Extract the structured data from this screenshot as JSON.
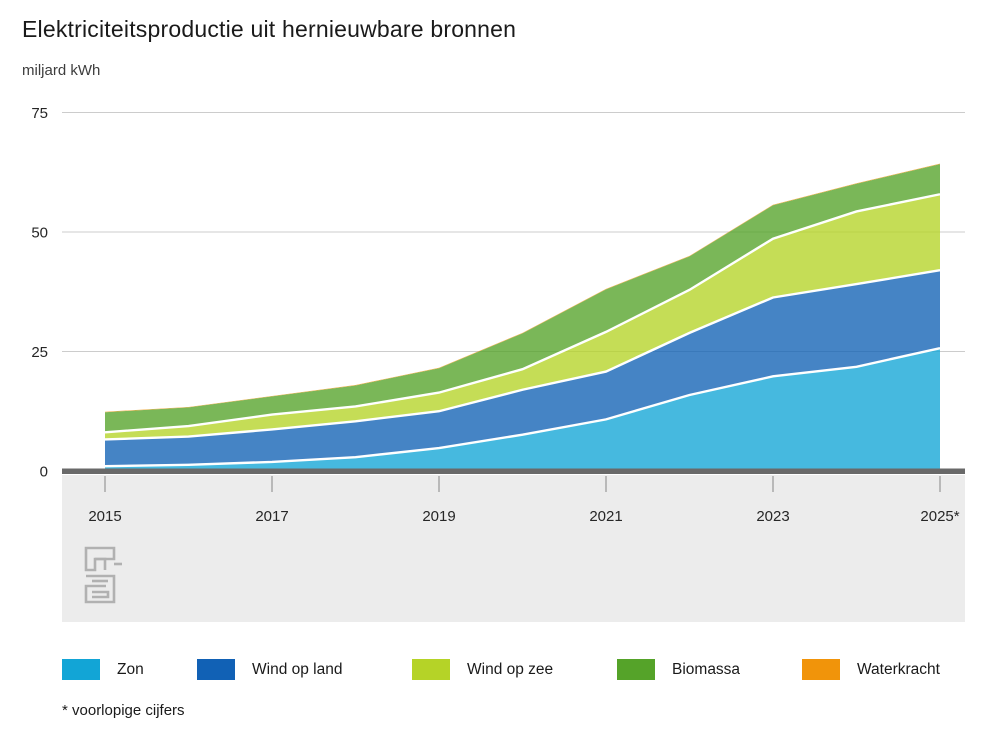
{
  "header": {
    "title": "Elektriciteitsproductie uit hernieuwbare bronnen",
    "unit_label": "miljard kWh"
  },
  "footnote": "* voorlopige cijfers",
  "logo_icon": "cbs-logo",
  "colors": {
    "axis_bar": "#696969",
    "gridline": "#cccccc",
    "footer_band": "#ececec",
    "tick": "#a8a8a8",
    "separator": "#ffffff"
  },
  "chart_data": {
    "type": "area",
    "stacked": true,
    "title": "Elektriciteitsproductie uit hernieuwbare bronnen",
    "ylabel": "miljard kWh",
    "xlabel": "",
    "x": [
      2015,
      2016,
      2017,
      2018,
      2019,
      2020,
      2021,
      2022,
      2023,
      2024,
      2025
    ],
    "x_ticks": [
      2015,
      2017,
      2019,
      2021,
      2023,
      2025
    ],
    "x_tick_labels": [
      "2015",
      "2017",
      "2019",
      "2021",
      "2023",
      "2025*"
    ],
    "ylim": [
      0,
      75
    ],
    "yticks": [
      0,
      25,
      50,
      75
    ],
    "grid": true,
    "legend_position": "bottom",
    "note": "* voorlopige cijfers",
    "series": [
      {
        "name": "Zon",
        "color": "#12a5d6",
        "values": [
          1.0,
          1.3,
          1.9,
          2.9,
          4.8,
          7.6,
          10.8,
          15.9,
          19.8,
          21.8,
          25.7
        ]
      },
      {
        "name": "Wind op land",
        "color": "#1161b5",
        "values": [
          5.6,
          5.9,
          6.8,
          7.5,
          7.7,
          9.4,
          10.0,
          13.0,
          16.5,
          17.3,
          16.3
        ]
      },
      {
        "name": "Wind op zee",
        "color": "#b5d327",
        "values": [
          1.5,
          2.2,
          3.1,
          3.1,
          3.9,
          4.3,
          8.3,
          9.0,
          12.3,
          15.2,
          15.9
        ]
      },
      {
        "name": "Biomassa",
        "color": "#55a329",
        "values": [
          4.2,
          3.9,
          3.8,
          4.4,
          5.1,
          7.5,
          8.9,
          7.0,
          7.0,
          5.8,
          6.3
        ]
      },
      {
        "name": "Waterkracht",
        "color": "#f1940a",
        "values": [
          0.1,
          0.1,
          0.1,
          0.1,
          0.1,
          0.1,
          0.1,
          0.1,
          0.1,
          0.1,
          0.1
        ]
      }
    ]
  }
}
